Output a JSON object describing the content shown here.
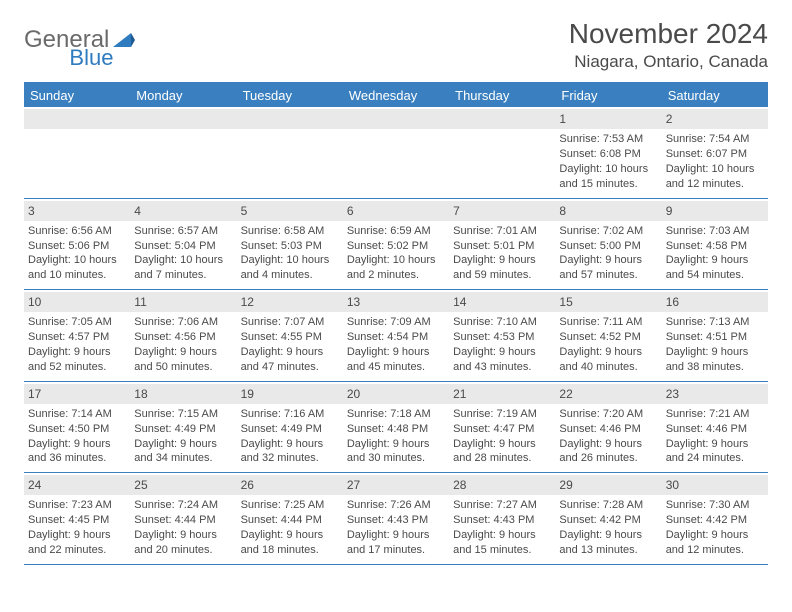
{
  "logo": {
    "text1": "General",
    "text2": "Blue"
  },
  "title": "November 2024",
  "location": "Niagara, Ontario, Canada",
  "colors": {
    "brand_blue": "#3a80c0",
    "header_text": "#ffffff",
    "body_text": "#4a4a4a",
    "daynum_bg": "#e9e9e9",
    "background": "#ffffff"
  },
  "columns": [
    "Sunday",
    "Monday",
    "Tuesday",
    "Wednesday",
    "Thursday",
    "Friday",
    "Saturday"
  ],
  "weeks": [
    [
      null,
      null,
      null,
      null,
      null,
      {
        "n": "1",
        "sunrise": "7:53 AM",
        "sunset": "6:08 PM",
        "daylight": "10 hours and 15 minutes."
      },
      {
        "n": "2",
        "sunrise": "7:54 AM",
        "sunset": "6:07 PM",
        "daylight": "10 hours and 12 minutes."
      }
    ],
    [
      {
        "n": "3",
        "sunrise": "6:56 AM",
        "sunset": "5:06 PM",
        "daylight": "10 hours and 10 minutes."
      },
      {
        "n": "4",
        "sunrise": "6:57 AM",
        "sunset": "5:04 PM",
        "daylight": "10 hours and 7 minutes."
      },
      {
        "n": "5",
        "sunrise": "6:58 AM",
        "sunset": "5:03 PM",
        "daylight": "10 hours and 4 minutes."
      },
      {
        "n": "6",
        "sunrise": "6:59 AM",
        "sunset": "5:02 PM",
        "daylight": "10 hours and 2 minutes."
      },
      {
        "n": "7",
        "sunrise": "7:01 AM",
        "sunset": "5:01 PM",
        "daylight": "9 hours and 59 minutes."
      },
      {
        "n": "8",
        "sunrise": "7:02 AM",
        "sunset": "5:00 PM",
        "daylight": "9 hours and 57 minutes."
      },
      {
        "n": "9",
        "sunrise": "7:03 AM",
        "sunset": "4:58 PM",
        "daylight": "9 hours and 54 minutes."
      }
    ],
    [
      {
        "n": "10",
        "sunrise": "7:05 AM",
        "sunset": "4:57 PM",
        "daylight": "9 hours and 52 minutes."
      },
      {
        "n": "11",
        "sunrise": "7:06 AM",
        "sunset": "4:56 PM",
        "daylight": "9 hours and 50 minutes."
      },
      {
        "n": "12",
        "sunrise": "7:07 AM",
        "sunset": "4:55 PM",
        "daylight": "9 hours and 47 minutes."
      },
      {
        "n": "13",
        "sunrise": "7:09 AM",
        "sunset": "4:54 PM",
        "daylight": "9 hours and 45 minutes."
      },
      {
        "n": "14",
        "sunrise": "7:10 AM",
        "sunset": "4:53 PM",
        "daylight": "9 hours and 43 minutes."
      },
      {
        "n": "15",
        "sunrise": "7:11 AM",
        "sunset": "4:52 PM",
        "daylight": "9 hours and 40 minutes."
      },
      {
        "n": "16",
        "sunrise": "7:13 AM",
        "sunset": "4:51 PM",
        "daylight": "9 hours and 38 minutes."
      }
    ],
    [
      {
        "n": "17",
        "sunrise": "7:14 AM",
        "sunset": "4:50 PM",
        "daylight": "9 hours and 36 minutes."
      },
      {
        "n": "18",
        "sunrise": "7:15 AM",
        "sunset": "4:49 PM",
        "daylight": "9 hours and 34 minutes."
      },
      {
        "n": "19",
        "sunrise": "7:16 AM",
        "sunset": "4:49 PM",
        "daylight": "9 hours and 32 minutes."
      },
      {
        "n": "20",
        "sunrise": "7:18 AM",
        "sunset": "4:48 PM",
        "daylight": "9 hours and 30 minutes."
      },
      {
        "n": "21",
        "sunrise": "7:19 AM",
        "sunset": "4:47 PM",
        "daylight": "9 hours and 28 minutes."
      },
      {
        "n": "22",
        "sunrise": "7:20 AM",
        "sunset": "4:46 PM",
        "daylight": "9 hours and 26 minutes."
      },
      {
        "n": "23",
        "sunrise": "7:21 AM",
        "sunset": "4:46 PM",
        "daylight": "9 hours and 24 minutes."
      }
    ],
    [
      {
        "n": "24",
        "sunrise": "7:23 AM",
        "sunset": "4:45 PM",
        "daylight": "9 hours and 22 minutes."
      },
      {
        "n": "25",
        "sunrise": "7:24 AM",
        "sunset": "4:44 PM",
        "daylight": "9 hours and 20 minutes."
      },
      {
        "n": "26",
        "sunrise": "7:25 AM",
        "sunset": "4:44 PM",
        "daylight": "9 hours and 18 minutes."
      },
      {
        "n": "27",
        "sunrise": "7:26 AM",
        "sunset": "4:43 PM",
        "daylight": "9 hours and 17 minutes."
      },
      {
        "n": "28",
        "sunrise": "7:27 AM",
        "sunset": "4:43 PM",
        "daylight": "9 hours and 15 minutes."
      },
      {
        "n": "29",
        "sunrise": "7:28 AM",
        "sunset": "4:42 PM",
        "daylight": "9 hours and 13 minutes."
      },
      {
        "n": "30",
        "sunrise": "7:30 AM",
        "sunset": "4:42 PM",
        "daylight": "9 hours and 12 minutes."
      }
    ]
  ],
  "labels": {
    "sunrise": "Sunrise: ",
    "sunset": "Sunset: ",
    "daylight": "Daylight: "
  }
}
